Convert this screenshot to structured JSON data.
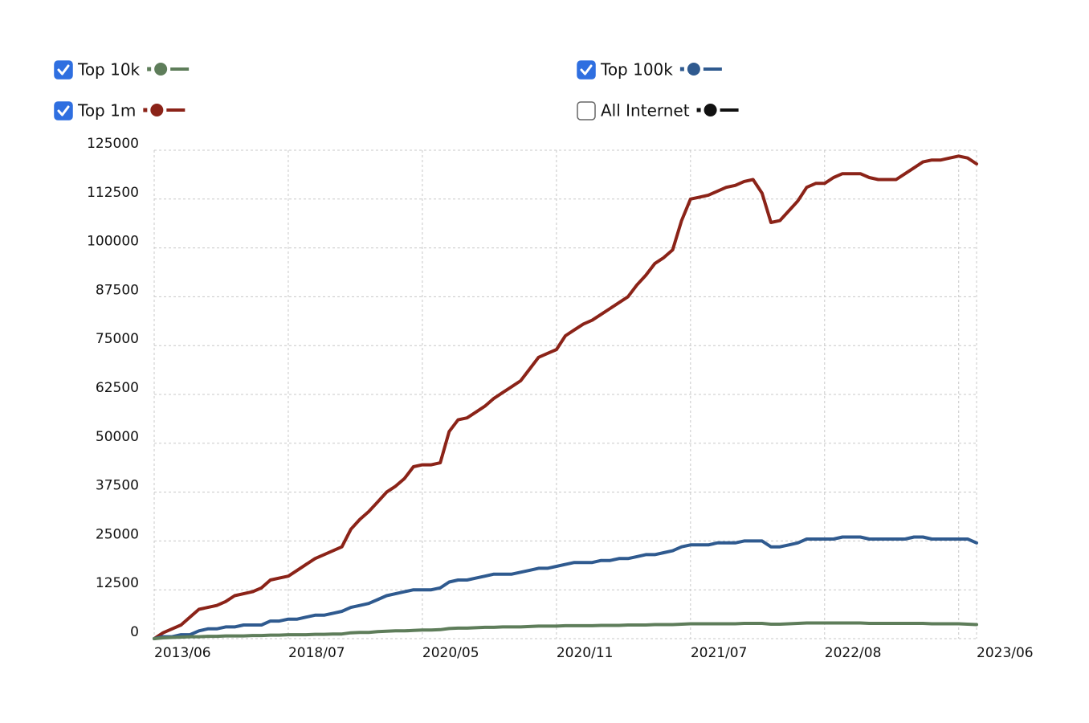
{
  "chart_data": {
    "type": "line",
    "categories": [
      "2013/06",
      null,
      null,
      null,
      null,
      null,
      null,
      null,
      null,
      null,
      null,
      null,
      null,
      null,
      null,
      "2018/07",
      null,
      null,
      null,
      null,
      null,
      null,
      null,
      null,
      null,
      null,
      null,
      null,
      null,
      null,
      "2020/05",
      null,
      null,
      null,
      null,
      null,
      null,
      null,
      null,
      null,
      null,
      null,
      null,
      null,
      null,
      "2020/11",
      null,
      null,
      null,
      null,
      null,
      null,
      null,
      null,
      null,
      null,
      null,
      null,
      null,
      null,
      "2021/07",
      null,
      null,
      null,
      null,
      null,
      null,
      null,
      null,
      null,
      null,
      null,
      null,
      null,
      null,
      "2022/08",
      null,
      null,
      null,
      null,
      null,
      null,
      null,
      null,
      null,
      null,
      null,
      null,
      null,
      null,
      null,
      null,
      "2023/06"
    ],
    "ylim": [
      0,
      125000
    ],
    "yticks": [
      0,
      12500,
      25000,
      37500,
      50000,
      62500,
      75000,
      87500,
      100000,
      112500,
      125000
    ],
    "grid": true,
    "series": [
      {
        "name": "Top 10k",
        "color": "#5e7d5a",
        "checked": true,
        "values": [
          0,
          200,
          300,
          400,
          500,
          500,
          600,
          600,
          700,
          700,
          700,
          800,
          800,
          900,
          900,
          1000,
          1000,
          1000,
          1100,
          1100,
          1200,
          1200,
          1500,
          1600,
          1600,
          1800,
          1900,
          2000,
          2000,
          2100,
          2200,
          2200,
          2300,
          2600,
          2700,
          2700,
          2800,
          2900,
          2900,
          3000,
          3000,
          3000,
          3100,
          3200,
          3200,
          3200,
          3300,
          3300,
          3300,
          3300,
          3400,
          3400,
          3400,
          3500,
          3500,
          3500,
          3600,
          3600,
          3600,
          3700,
          3800,
          3800,
          3800,
          3800,
          3800,
          3800,
          3900,
          3900,
          3900,
          3700,
          3700,
          3800,
          3900,
          4000,
          4000,
          4000,
          4000,
          4000,
          4000,
          4000,
          3900,
          3900,
          3900,
          3900,
          3900,
          3900,
          3900,
          3800,
          3800,
          3800,
          3800,
          3700,
          3600
        ]
      },
      {
        "name": "Top 100k",
        "color": "#2f5a8f",
        "checked": true,
        "values": [
          0,
          500,
          500,
          1000,
          1000,
          2000,
          2500,
          2500,
          3000,
          3000,
          3500,
          3500,
          3500,
          4500,
          4500,
          5000,
          5000,
          5500,
          6000,
          6000,
          6500,
          7000,
          8000,
          8500,
          9000,
          10000,
          11000,
          11500,
          12000,
          12500,
          12500,
          12500,
          13000,
          14500,
          15000,
          15000,
          15500,
          16000,
          16500,
          16500,
          16500,
          17000,
          17500,
          18000,
          18000,
          18500,
          19000,
          19500,
          19500,
          19500,
          20000,
          20000,
          20500,
          20500,
          21000,
          21500,
          21500,
          22000,
          22500,
          23500,
          24000,
          24000,
          24000,
          24500,
          24500,
          24500,
          25000,
          25000,
          25000,
          23500,
          23500,
          24000,
          24500,
          25500,
          25500,
          25500,
          25500,
          26000,
          26000,
          26000,
          25500,
          25500,
          25500,
          25500,
          25500,
          26000,
          26000,
          25500,
          25500,
          25500,
          25500,
          25500,
          24500
        ]
      },
      {
        "name": "Top 1m",
        "color": "#8b2318",
        "checked": true,
        "values": [
          0,
          1500,
          2500,
          3500,
          5500,
          7500,
          8000,
          8500,
          9500,
          11000,
          11500,
          12000,
          13000,
          15000,
          15500,
          16000,
          17500,
          19000,
          20500,
          21500,
          22500,
          23500,
          28000,
          30500,
          32500,
          35000,
          37500,
          39000,
          41000,
          44000,
          44500,
          44500,
          45000,
          53000,
          56000,
          56500,
          58000,
          59500,
          61500,
          63000,
          64500,
          66000,
          69000,
          72000,
          73000,
          74000,
          77500,
          79000,
          80500,
          81500,
          83000,
          84500,
          86000,
          87500,
          90500,
          93000,
          96000,
          97500,
          99500,
          107000,
          112500,
          113000,
          113500,
          114500,
          115500,
          116000,
          117000,
          117500,
          114000,
          106500,
          107000,
          109500,
          112000,
          115500,
          116500,
          116500,
          118000,
          119000,
          119000,
          119000,
          118000,
          117500,
          117500,
          117500,
          119000,
          120500,
          122000,
          122500,
          122500,
          123000,
          123500,
          123000,
          121500
        ]
      },
      {
        "name": "All Internet",
        "color": "#111111",
        "checked": false
      }
    ]
  }
}
